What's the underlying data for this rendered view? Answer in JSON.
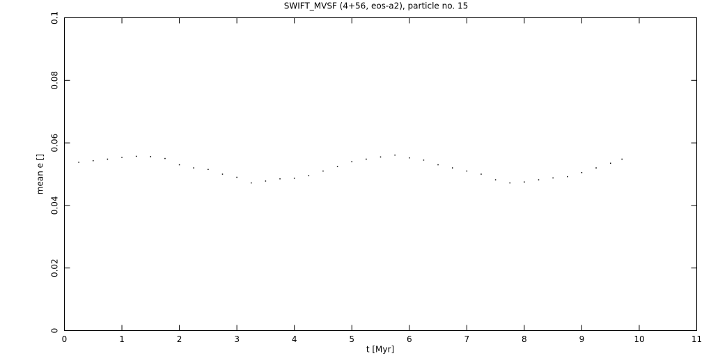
{
  "chart_data": {
    "type": "scatter",
    "title": "SWIFT_MVSF (4+56, eos-a2), particle no. 15",
    "x_label": "t [Myr]",
    "y_label": "mean e []",
    "x": [
      0.25,
      0.5,
      0.75,
      1.0,
      1.25,
      1.5,
      1.75,
      2.0,
      2.25,
      2.5,
      2.75,
      3.0,
      3.25,
      3.5,
      3.75,
      4.0,
      4.25,
      4.5,
      4.75,
      5.0,
      5.25,
      5.5,
      5.75,
      6.0,
      6.25,
      6.5,
      6.75,
      7.0,
      7.25,
      7.5,
      7.75,
      8.0,
      8.25,
      8.5,
      8.75,
      9.0,
      9.25,
      9.5,
      9.7
    ],
    "values": [
      0.0538,
      0.0543,
      0.0548,
      0.0554,
      0.0557,
      0.0556,
      0.055,
      0.053,
      0.052,
      0.0515,
      0.05,
      0.049,
      0.0472,
      0.0478,
      0.0485,
      0.0487,
      0.0495,
      0.051,
      0.0525,
      0.054,
      0.0548,
      0.0555,
      0.0561,
      0.0552,
      0.0545,
      0.053,
      0.052,
      0.051,
      0.05,
      0.0482,
      0.0472,
      0.0475,
      0.0482,
      0.0488,
      0.0492,
      0.0505,
      0.052,
      0.0535,
      0.0548
    ],
    "color": "#000000",
    "xlim": [
      0,
      11
    ],
    "xticks": [
      0,
      1,
      2,
      3,
      4,
      5,
      6,
      7,
      8,
      9,
      10,
      11
    ],
    "ylim": [
      0,
      0.1
    ],
    "yticks": [
      0,
      0.02,
      0.04,
      0.06,
      0.08,
      0.1
    ]
  }
}
